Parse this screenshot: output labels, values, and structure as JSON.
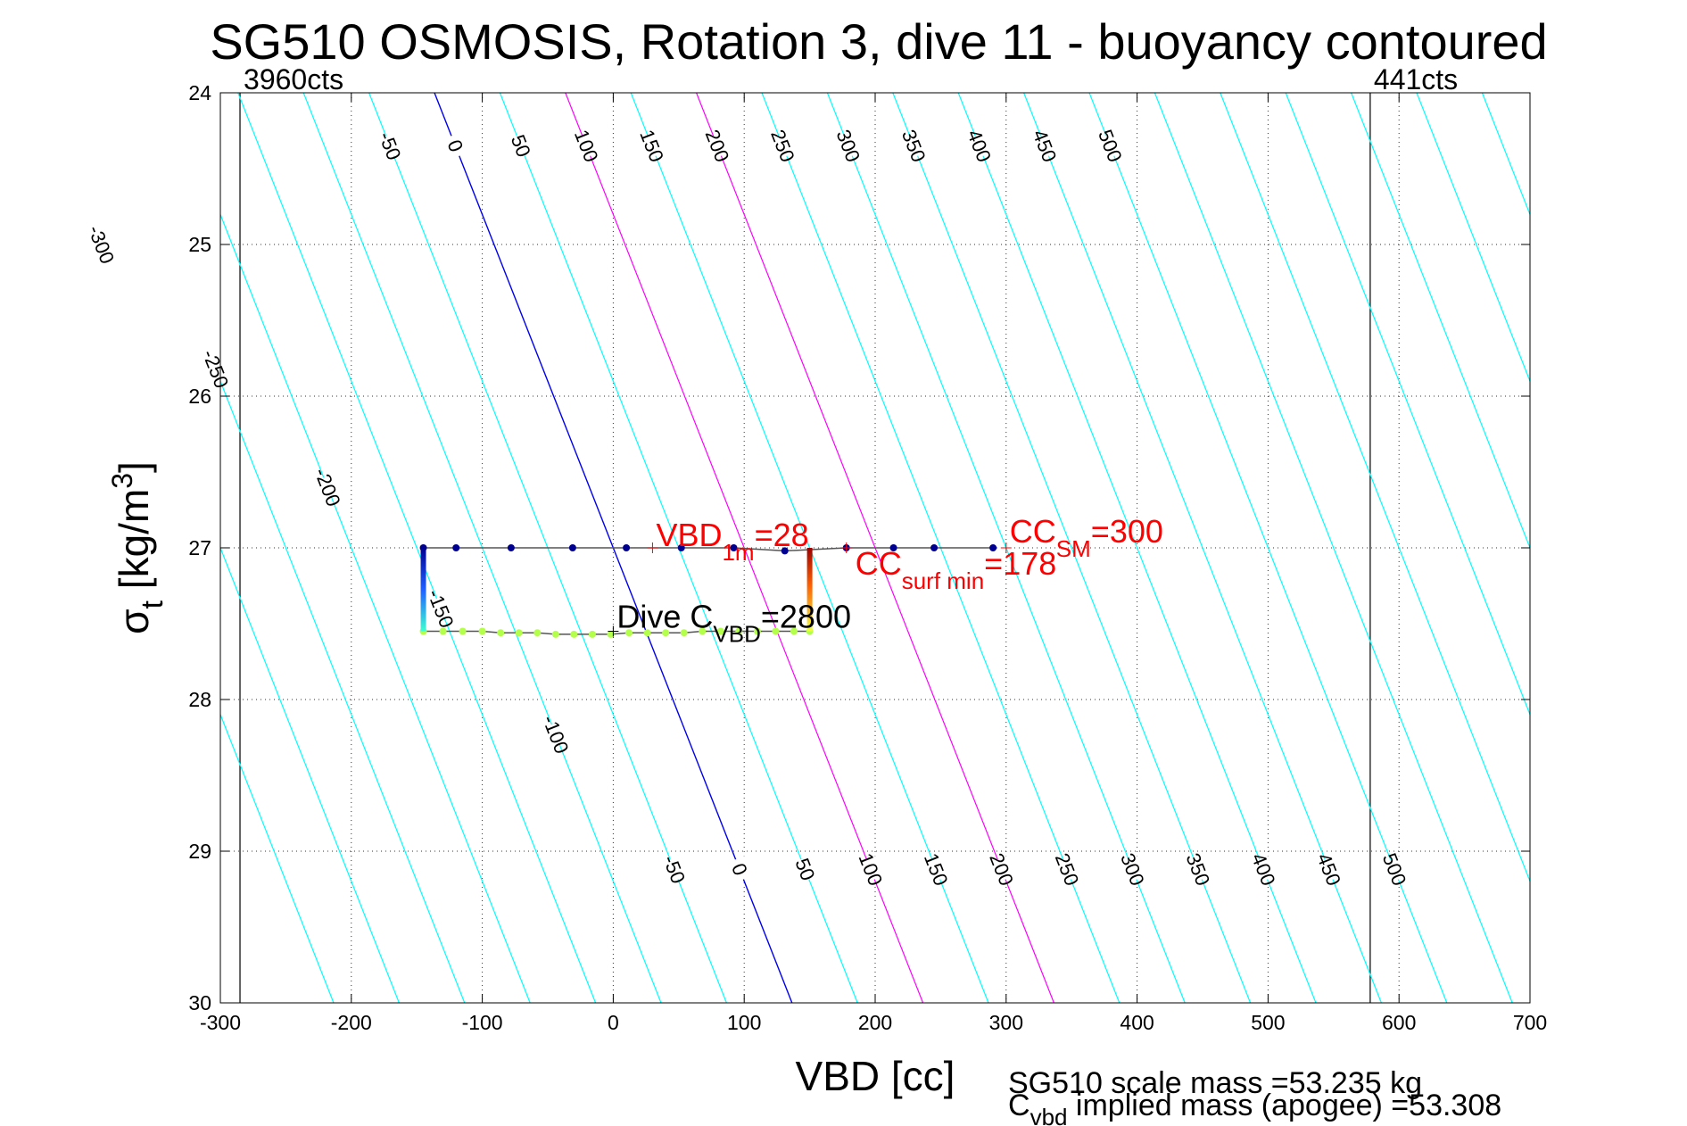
{
  "chart_data": {
    "type": "line",
    "title": "SG510 OSMOSIS, Rotation 3, dive 11 - buoyancy contoured",
    "xlabel": "VBD [cc]",
    "ylabel_base": "σ",
    "ylabel_sub": "t",
    "ylabel_unit_pre": " [kg/m",
    "ylabel_unit_sup": "3",
    "ylabel_unit_post": "]",
    "xlim": [
      -300,
      700
    ],
    "ylim": [
      24,
      30
    ],
    "y_reversed": true,
    "grid": "dotted",
    "x_ticks": [
      -300,
      -200,
      -100,
      0,
      100,
      200,
      300,
      400,
      500,
      600,
      700
    ],
    "y_ticks": [
      24,
      25,
      26,
      27,
      28,
      29,
      30
    ],
    "reference_lines": [
      {
        "x": -285,
        "label": "3960cts"
      },
      {
        "x": 578,
        "label": "441cts"
      }
    ],
    "contours": {
      "slope_cc_per_sigma": 45.5,
      "levels": [
        -350,
        -300,
        -250,
        -200,
        -150,
        -100,
        -50,
        0,
        50,
        100,
        150,
        200,
        250,
        300,
        350,
        400,
        450,
        500,
        550,
        600,
        650,
        700,
        750,
        800,
        850,
        900
      ],
      "upper_labels": [
        "-50",
        "0",
        "50",
        "100",
        "150",
        "200",
        "250",
        "300",
        "350",
        "400",
        "450",
        "500"
      ],
      "left_labels": [
        "-300",
        "-250",
        "-200",
        "-150",
        "-100"
      ],
      "lower_labels": [
        "-50",
        "0",
        "50",
        "100",
        "150",
        "200",
        "250",
        "300",
        "350",
        "400",
        "450",
        "500"
      ],
      "colors": {
        "zero": "#0000ee",
        "highlight": "#ff00ff",
        "other": "#00ffff"
      },
      "highlight_levels": [
        100,
        200
      ]
    },
    "series": [
      {
        "points": [
          [
            -145,
            27.0
          ],
          [
            -120,
            27.0
          ],
          [
            -78,
            27.0
          ],
          [
            -31,
            27.0
          ],
          [
            10,
            27.0
          ],
          [
            52,
            27.0
          ],
          [
            92,
            27.0
          ],
          [
            131,
            27.02
          ],
          [
            178,
            27.0
          ],
          [
            214,
            27.0
          ],
          [
            245,
            27.0
          ],
          [
            290,
            27.0
          ]
        ],
        "color": "#000090"
      },
      {
        "points": [
          [
            -145,
            27.55
          ],
          [
            -130,
            27.55
          ],
          [
            -115,
            27.55
          ],
          [
            -100,
            27.55
          ],
          [
            -86,
            27.56
          ],
          [
            -72,
            27.56
          ],
          [
            -58,
            27.56
          ],
          [
            -44,
            27.57
          ],
          [
            -30,
            27.57
          ],
          [
            -16,
            27.57
          ],
          [
            -2,
            27.57
          ],
          [
            12,
            27.56
          ],
          [
            26,
            27.56
          ],
          [
            40,
            27.56
          ],
          [
            54,
            27.56
          ],
          [
            68,
            27.55
          ],
          [
            82,
            27.55
          ],
          [
            96,
            27.55
          ],
          [
            110,
            27.55
          ],
          [
            124,
            27.55
          ],
          [
            138,
            27.55
          ],
          [
            150,
            27.55
          ]
        ],
        "color": "#b4ff4c"
      }
    ],
    "annotations": [
      {
        "base": "VBD",
        "sub": "1m",
        "rest": "=28",
        "x": 30,
        "y": 27.0,
        "color": "#ff0000"
      },
      {
        "base": "CC",
        "sub": "SM",
        "rest": "=300",
        "x": 300,
        "y": 27.0,
        "color": "#ff0000"
      },
      {
        "base": "CC",
        "sub": "surf min",
        "rest": "=178",
        "x": 178,
        "y": 27.0,
        "color": "#ff0000"
      },
      {
        "base": "Dive C",
        "sub": "VBD",
        "rest": "=2800",
        "x": 0,
        "y": 27.55,
        "color": "#000000"
      }
    ],
    "footer_line1": "SG510 scale mass =53.235 kg",
    "footer_line2_base": "C",
    "footer_line2_sub": "vbd",
    "footer_line2_rest": " implied mass (apogee) =53.308"
  }
}
